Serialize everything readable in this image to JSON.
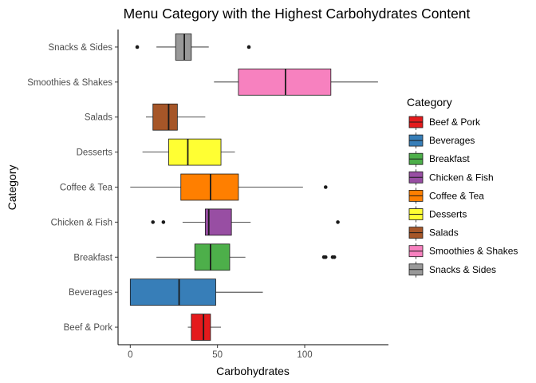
{
  "chart_data": {
    "type": "boxplot",
    "orientation": "horizontal",
    "title": "Menu Category with the Highest Carbohydrates Content",
    "xlabel": "Carbohydrates",
    "ylabel": "Category",
    "xlim": [
      -7,
      148
    ],
    "xticks": [
      0,
      50,
      100
    ],
    "grid": false,
    "legend": {
      "title": "Category",
      "position": "right"
    },
    "categories": [
      {
        "name": "Beef & Pork",
        "color": "#E41A1C",
        "whisker_low": 33,
        "q1": 35,
        "median": 42,
        "q3": 46,
        "whisker_high": 52,
        "outliers": []
      },
      {
        "name": "Beverages",
        "color": "#377EB8",
        "whisker_low": 0,
        "q1": 0,
        "median": 28,
        "q3": 49,
        "whisker_high": 76,
        "outliers": []
      },
      {
        "name": "Breakfast",
        "color": "#4DAF4A",
        "whisker_low": 15,
        "q1": 37,
        "median": 46,
        "q3": 57,
        "whisker_high": 66,
        "outliers": [
          111,
          112,
          116,
          117
        ]
      },
      {
        "name": "Chicken & Fish",
        "color": "#984EA3",
        "whisker_low": 30,
        "q1": 43,
        "median": 45,
        "q3": 58,
        "whisker_high": 69,
        "outliers": [
          13,
          19,
          119
        ]
      },
      {
        "name": "Coffee & Tea",
        "color": "#FF7F00",
        "whisker_low": 0,
        "q1": 29,
        "median": 46,
        "q3": 62,
        "whisker_high": 99,
        "outliers": [
          112
        ]
      },
      {
        "name": "Desserts",
        "color": "#FFFF33",
        "whisker_low": 7,
        "q1": 22,
        "median": 33,
        "q3": 52,
        "whisker_high": 60,
        "outliers": []
      },
      {
        "name": "Salads",
        "color": "#A65628",
        "whisker_low": 9,
        "q1": 13,
        "median": 22,
        "q3": 27,
        "whisker_high": 43,
        "outliers": []
      },
      {
        "name": "Smoothies & Shakes",
        "color": "#F781BF",
        "whisker_low": 48,
        "q1": 62,
        "median": 89,
        "q3": 115,
        "whisker_high": 142,
        "outliers": []
      },
      {
        "name": "Snacks & Sides",
        "color": "#999999",
        "whisker_low": 15,
        "q1": 26,
        "median": 31,
        "q3": 35,
        "whisker_high": 45,
        "outliers": [
          4,
          68
        ]
      }
    ]
  }
}
